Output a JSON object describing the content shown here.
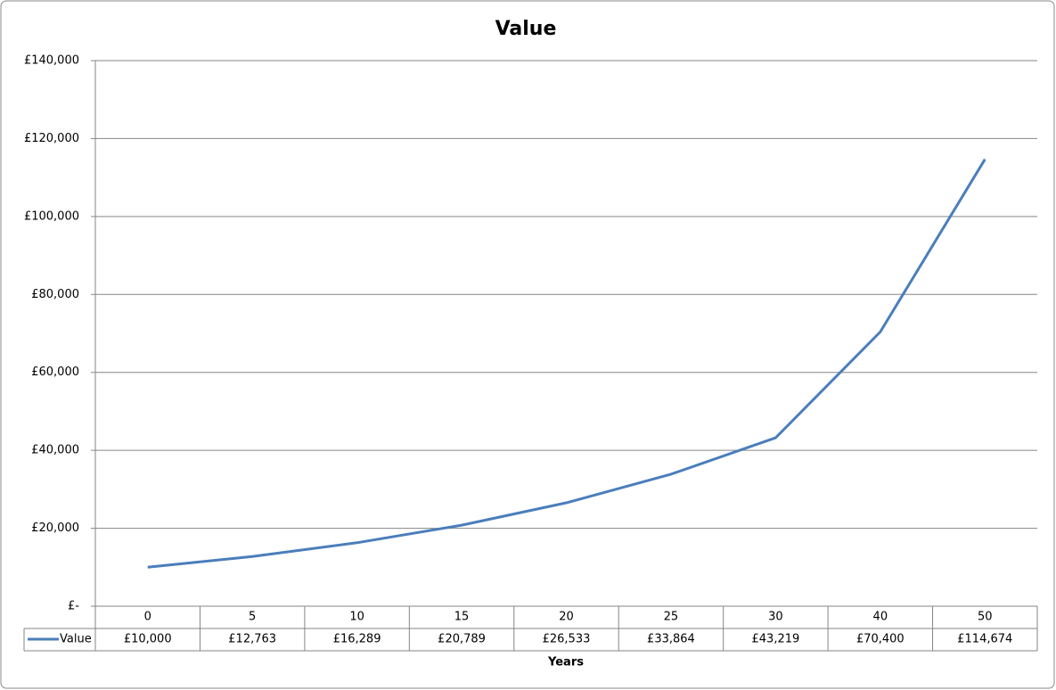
{
  "chart_data": {
    "type": "line",
    "title": "Value",
    "x_label": "Years",
    "categories": [
      "0",
      "5",
      "10",
      "15",
      "20",
      "25",
      "30",
      "40",
      "50"
    ],
    "series": [
      {
        "name": "Value",
        "color": "#4a7ebb",
        "values": [
          10000,
          12763,
          16289,
          20789,
          26533,
          33864,
          43219,
          70400,
          114674
        ],
        "value_labels": [
          "£10,000",
          "£12,763",
          "£16,289",
          "£20,789",
          "£26,533",
          "£33,864",
          "£43,219",
          "£70,400",
          "£114,674"
        ]
      }
    ],
    "ylim": [
      0,
      140000
    ],
    "yticks": [
      {
        "value": 0,
        "label": "£-"
      },
      {
        "value": 20000,
        "label": "£20,000"
      },
      {
        "value": 40000,
        "label": "£40,000"
      },
      {
        "value": 60000,
        "label": "£60,000"
      },
      {
        "value": 80000,
        "label": "£80,000"
      },
      {
        "value": 100000,
        "label": "£100,000"
      },
      {
        "value": 120000,
        "label": "£120,000"
      },
      {
        "value": 140000,
        "label": "£140,000"
      }
    ],
    "grid": true
  }
}
